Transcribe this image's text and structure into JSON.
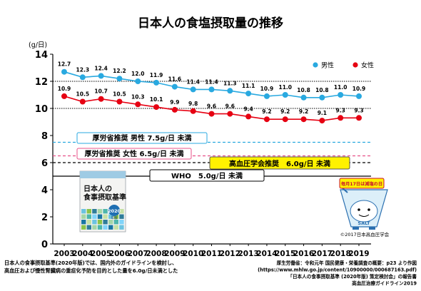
{
  "chart_data": {
    "type": "line",
    "title": "日本人の食塩摂取量の推移",
    "ylabel": "(g/日)",
    "ylim": [
      0,
      14
    ],
    "yticks": [
      0,
      2,
      4,
      6,
      8,
      10,
      12,
      14
    ],
    "grid": false,
    "legend_position": "top-right",
    "x": [
      "2003",
      "2004",
      "2005",
      "2006",
      "2007",
      "2008",
      "2009",
      "2010",
      "2011",
      "2012",
      "2013",
      "2014",
      "2015",
      "2016",
      "2017",
      "2018",
      "2019"
    ],
    "series": [
      {
        "name": "男性",
        "color": "#29a9e0",
        "values": [
          12.7,
          12.3,
          12.4,
          12.2,
          12.0,
          11.9,
          11.6,
          11.4,
          11.4,
          11.3,
          11.1,
          10.9,
          11.0,
          10.8,
          10.8,
          11.0,
          10.9
        ],
        "labels": [
          "12.7",
          "12.3",
          "12.4",
          "12.2",
          "12.0",
          "11.9",
          "11.6",
          "11.4",
          "11.4",
          "11.3",
          "11.1",
          "10.9",
          "11.0",
          "10.8",
          "10.8",
          "11.0",
          "10.9"
        ]
      },
      {
        "name": "女性",
        "color": "#e60012",
        "values": [
          10.9,
          10.5,
          10.7,
          10.5,
          10.3,
          10.1,
          9.9,
          9.8,
          9.6,
          9.6,
          9.4,
          9.2,
          9.2,
          9.2,
          9.1,
          9.3,
          9.3
        ],
        "labels": [
          "10.9",
          "10.5",
          "10.7",
          "10.5",
          "10.3",
          "10.1",
          "9.9",
          "9.8",
          "9.6",
          "9.6",
          "9.4",
          "9.2",
          "9.2",
          "9.2",
          "9.1",
          "9.3",
          "9.3"
        ]
      }
    ],
    "reference_lines": [
      {
        "value": 12,
        "style": "dotted",
        "color": "#000000"
      },
      {
        "value": 10,
        "style": "dotted",
        "color": "#000000"
      },
      {
        "value": 7.5,
        "style": "dashed",
        "color": "#29a9e0",
        "label": "厚労省推奨 男性 7.5g/日 未満"
      },
      {
        "value": 6.5,
        "style": "dashed",
        "color": "#e8528a",
        "label": "厚労省推奨 女性 6.5g/日 未満"
      },
      {
        "value": 6.0,
        "style": "dashed",
        "color": "#000000",
        "label": "高血圧学会推奨　6.0g/日 未満"
      },
      {
        "value": 5.0,
        "style": "solid",
        "color": "#000000",
        "label": "WHO　5.0g/日 未満"
      }
    ]
  },
  "book": {
    "title_line1": "日本人の",
    "title_line2": "食事摂取基準",
    "year_badge": "2020",
    "year_suffix": "年版"
  },
  "mascot": {
    "sign_text": "毎月17日は減塩の日",
    "shirt_text": "SALT"
  },
  "copyright": "©2017日本高血圧学会",
  "footer_left": [
    "日本人の食事摂取基準(2020年版)では、国内外のガイドラインを検討し、",
    "高血圧および慢性腎臓病の重症化予防を目的とした量を6.0g/日未満とした"
  ],
  "footer_right": [
    "厚生労働省：令和元年 国民健康・栄養調査の概要：p23 より作図",
    "(https://www.mhlw.go.jp/content/10900000/000687163.pdf)",
    "「日本人の食事摂取基準 (2020年版) 策定検討会」の報告書",
    "高血圧治療ガイドライン2019"
  ]
}
